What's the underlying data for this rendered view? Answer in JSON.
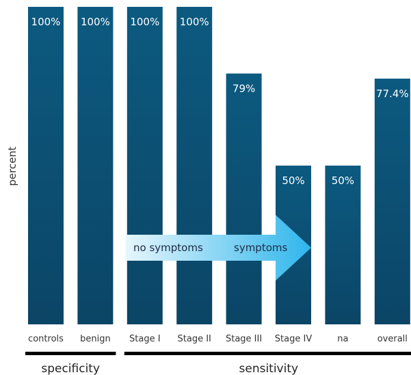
{
  "chart_data": {
    "type": "bar",
    "ylabel": "percent",
    "ylim": [
      0,
      100
    ],
    "categories": [
      "controls",
      "benign",
      "Stage I",
      "Stage II",
      "Stage III",
      "Stage IV",
      "na",
      "overall"
    ],
    "values": [
      100,
      100,
      100,
      100,
      79,
      50,
      50,
      77.4
    ],
    "value_labels": [
      "100%",
      "100%",
      "100%",
      "100%",
      "79%",
      "50%",
      "50%",
      "77.4%"
    ],
    "groups": [
      {
        "label": "specificity",
        "from": 0,
        "to": 1
      },
      {
        "label": "sensitivity",
        "from": 2,
        "to": 7
      }
    ],
    "annotation": {
      "from_label": "no symptoms",
      "to_label": "symptoms",
      "span_from": 2,
      "span_to": 5
    },
    "colors": {
      "bar_top": "#0c5a80",
      "bar_bottom": "#0b4566",
      "arrow_start": "#e6f6fd",
      "arrow_end": "#2fb6ec",
      "group_line": "#000000"
    },
    "grid": false
  }
}
